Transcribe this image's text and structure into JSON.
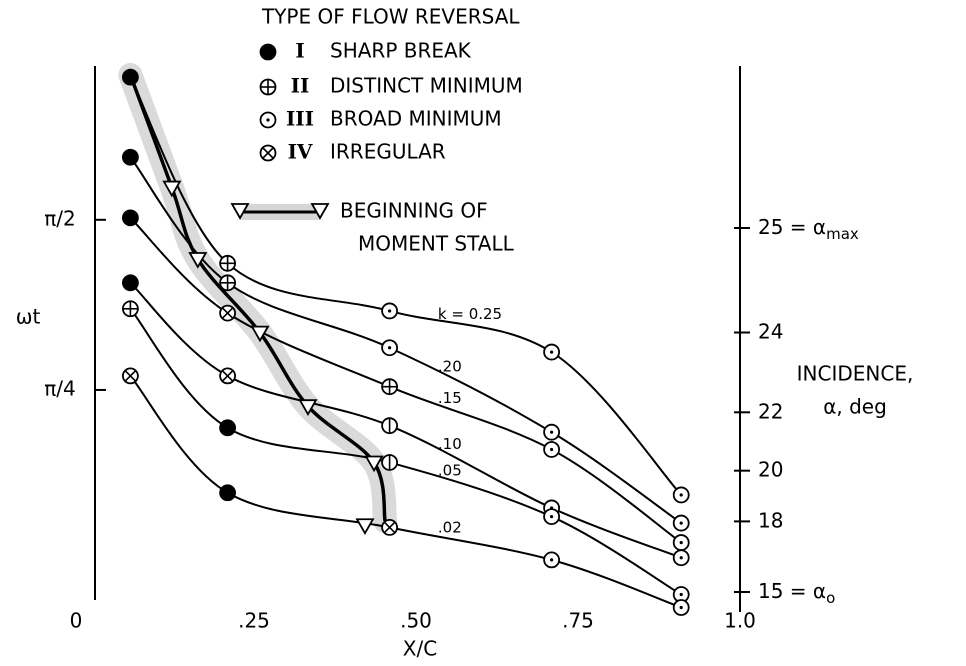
{
  "chart_data": {
    "type": "line",
    "xlabel": "X/C",
    "ylabel": "ωt",
    "y2label": [
      "INCIDENCE,",
      "α, deg"
    ],
    "xlim": [
      0,
      1.0
    ],
    "xticks": [
      0,
      {
        "value": 0.25,
        "label": ".25"
      },
      {
        "value": 0.5,
        "label": ".50"
      },
      {
        "value": 0.75,
        "label": ".75"
      },
      {
        "value": 1.0,
        "label": "1.0"
      }
    ],
    "ylim": [
      -0.25,
      2.3
    ],
    "yticks": [
      {
        "value": 0.785,
        "label": "π/4"
      },
      {
        "value": 1.571,
        "label": "π/2"
      }
    ],
    "y2lim": [
      15,
      25
    ],
    "y2scale": "sine",
    "y2ticks": [
      {
        "value": 15,
        "label": "15 = α",
        "sub": "o"
      },
      18,
      20,
      22,
      24,
      {
        "value": 25,
        "label": "25 = α",
        "sub": "max"
      }
    ],
    "grid": false,
    "legend": {
      "title": "TYPE OF FLOW REVERSAL",
      "items": [
        {
          "marker": "filled",
          "numeral": "I",
          "text": "SHARP BREAK"
        },
        {
          "marker": "plus",
          "numeral": "II",
          "text": "DISTINCT MINIMUM"
        },
        {
          "marker": "open",
          "numeral": "III",
          "text": "BROAD MINIMUM"
        },
        {
          "marker": "cross",
          "numeral": "IV",
          "text": "IRREGULAR"
        }
      ]
    },
    "stall": {
      "name": [
        "BEGINNING OF",
        "MOMENT STALL"
      ],
      "color": "#000",
      "x": [
        0.05,
        0.114,
        0.154,
        0.25,
        0.324,
        0.426,
        0.443
      ],
      "values": [
        2.24,
        1.72,
        1.39,
        1.05,
        0.71,
        0.45,
        0.18
      ],
      "marker_x": [
        0.114,
        0.154,
        0.25,
        0.324,
        0.426,
        0.412
      ],
      "marker_values": [
        1.72,
        1.39,
        1.05,
        0.71,
        0.45,
        0.16
      ]
    },
    "series": [
      {
        "name": "k = 0.25",
        "color": "#000",
        "x": [
          0.05,
          0.2,
          0.45,
          0.7,
          0.9
        ],
        "values": [
          2.23,
          1.37,
          1.15,
          0.96,
          0.3
        ],
        "markers": [
          "filled",
          "plus",
          "open",
          "open",
          "open"
        ]
      },
      {
        "name": ".20",
        "color": "#000",
        "x": [
          0.05,
          0.2,
          0.45,
          0.7,
          0.9
        ],
        "values": [
          1.86,
          1.28,
          0.98,
          0.59,
          0.17
        ],
        "markers": [
          "filled",
          "plus",
          "open",
          "open",
          "open"
        ]
      },
      {
        "name": ".15",
        "color": "#000",
        "x": [
          0.05,
          0.2,
          0.45,
          0.7,
          0.9
        ],
        "values": [
          1.58,
          1.14,
          0.8,
          0.51,
          0.08
        ],
        "markers": [
          "filled",
          "cross",
          "plus",
          "open",
          "open"
        ]
      },
      {
        "name": ".10",
        "color": "#000",
        "x": [
          0.05,
          0.2,
          0.45,
          0.7,
          0.9
        ],
        "values": [
          1.28,
          0.85,
          0.62,
          0.24,
          0.01
        ],
        "markers": [
          "filled",
          "cross",
          "bar",
          "open",
          "open"
        ]
      },
      {
        "name": ".05",
        "color": "#000",
        "x": [
          0.05,
          0.2,
          0.45,
          0.7,
          0.9
        ],
        "values": [
          1.16,
          0.61,
          0.45,
          0.2,
          -0.16
        ],
        "markers": [
          "plus",
          "filled",
          "bar",
          "open",
          "open"
        ]
      },
      {
        "name": ".02",
        "color": "#000",
        "x": [
          0.05,
          0.2,
          0.45,
          0.7,
          0.9
        ],
        "values": [
          0.85,
          0.31,
          0.15,
          0.0,
          -0.22
        ],
        "markers": [
          "cross",
          "filled",
          "cross",
          "open",
          "open"
        ]
      }
    ]
  }
}
